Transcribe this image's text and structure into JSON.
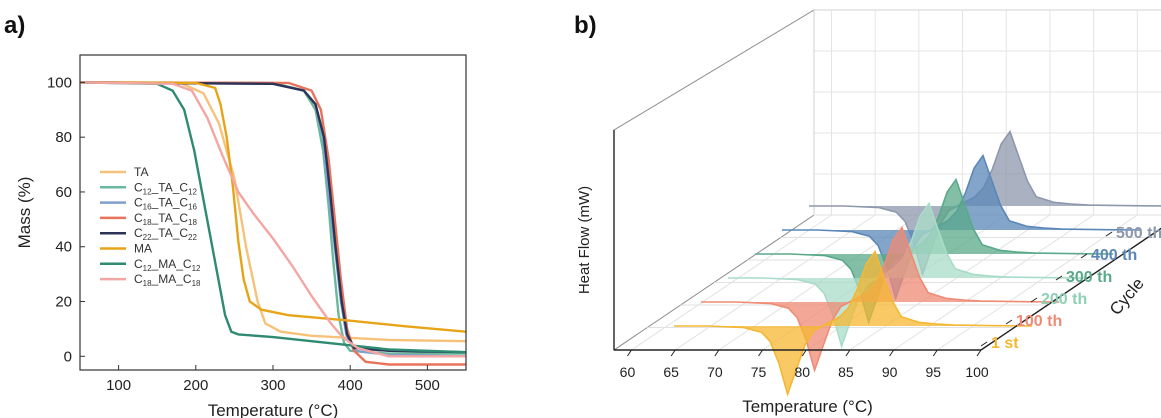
{
  "panel_a": {
    "label": "a)"
  },
  "panel_b": {
    "label": "b)"
  },
  "chart_data": [
    {
      "type": "line",
      "xlabel": "Temperature (°C)",
      "ylabel": "Mass (%)",
      "xlim": [
        50,
        550
      ],
      "ylim": [
        -5,
        110
      ],
      "xticks": [
        100,
        200,
        300,
        400,
        500
      ],
      "yticks": [
        0,
        20,
        40,
        60,
        80,
        100
      ],
      "legend_position": "bottom-left",
      "series": [
        {
          "name": "TA",
          "sub": [
            "",
            ""
          ],
          "color": "#f6c27a",
          "points": [
            [
              50,
              100
            ],
            [
              180,
              99.8
            ],
            [
              210,
              96
            ],
            [
              230,
              85
            ],
            [
              250,
              65
            ],
            [
              265,
              40
            ],
            [
              280,
              20
            ],
            [
              290,
              12
            ],
            [
              310,
              9
            ],
            [
              350,
              7.5
            ],
            [
              450,
              6
            ],
            [
              550,
              5.5
            ]
          ]
        },
        {
          "name": "C",
          "sub": [
            "12",
            "_TA_C",
            "12"
          ],
          "color": "#6bb99d",
          "points": [
            [
              50,
              100
            ],
            [
              300,
              99.8
            ],
            [
              340,
              97
            ],
            [
              355,
              90
            ],
            [
              365,
              75
            ],
            [
              372,
              55
            ],
            [
              378,
              35
            ],
            [
              385,
              15
            ],
            [
              392,
              5
            ],
            [
              400,
              2
            ],
            [
              450,
              1
            ],
            [
              550,
              1
            ]
          ]
        },
        {
          "name": "C",
          "sub": [
            "16",
            "_TA_C",
            "16"
          ],
          "color": "#7f9fcf",
          "points": [
            [
              50,
              100
            ],
            [
              300,
              99.5
            ],
            [
              340,
              97
            ],
            [
              355,
              92
            ],
            [
              365,
              80
            ],
            [
              372,
              60
            ],
            [
              380,
              40
            ],
            [
              388,
              20
            ],
            [
              395,
              8
            ],
            [
              405,
              2
            ],
            [
              450,
              0.5
            ],
            [
              550,
              0
            ]
          ]
        },
        {
          "name": "C",
          "sub": [
            "18",
            "_TA_C",
            "18"
          ],
          "color": "#e8735a",
          "points": [
            [
              50,
              100
            ],
            [
              320,
              99.8
            ],
            [
              350,
              97
            ],
            [
              362,
              90
            ],
            [
              372,
              72
            ],
            [
              380,
              50
            ],
            [
              388,
              28
            ],
            [
              396,
              10
            ],
            [
              405,
              2
            ],
            [
              420,
              -2
            ],
            [
              450,
              -3
            ],
            [
              550,
              -3
            ]
          ]
        },
        {
          "name": "C",
          "sub": [
            "22",
            "_TA_C",
            "22"
          ],
          "color": "#2c3357",
          "points": [
            [
              50,
              100
            ],
            [
              300,
              99.5
            ],
            [
              340,
              97
            ],
            [
              355,
              92
            ],
            [
              366,
              80
            ],
            [
              374,
              60
            ],
            [
              381,
              40
            ],
            [
              389,
              20
            ],
            [
              396,
              8
            ],
            [
              405,
              3
            ],
            [
              450,
              2
            ],
            [
              550,
              1.5
            ]
          ]
        },
        {
          "name": "MA",
          "sub": [
            "",
            ""
          ],
          "color": "#e8a418",
          "points": [
            [
              50,
              100
            ],
            [
              200,
              99.8
            ],
            [
              225,
              98
            ],
            [
              232,
              92
            ],
            [
              240,
              80
            ],
            [
              248,
              62
            ],
            [
              255,
              42
            ],
            [
              262,
              28
            ],
            [
              270,
              20
            ],
            [
              285,
              17
            ],
            [
              320,
              15
            ],
            [
              400,
              13
            ],
            [
              470,
              11
            ],
            [
              550,
              9
            ]
          ]
        },
        {
          "name": "C",
          "sub": [
            "12",
            "_MA_C",
            "12"
          ],
          "color": "#2e8b72",
          "points": [
            [
              50,
              100
            ],
            [
              150,
              99.5
            ],
            [
              170,
              97
            ],
            [
              185,
              90
            ],
            [
              198,
              75
            ],
            [
              208,
              60
            ],
            [
              218,
              45
            ],
            [
              228,
              30
            ],
            [
              238,
              15
            ],
            [
              246,
              9
            ],
            [
              255,
              8
            ],
            [
              300,
              7
            ],
            [
              400,
              4
            ],
            [
              450,
              2.5
            ],
            [
              550,
              1.5
            ]
          ]
        },
        {
          "name": "C",
          "sub": [
            "18",
            "_MA_C",
            "18"
          ],
          "color": "#f4a6a3",
          "points": [
            [
              50,
              100
            ],
            [
              170,
              99.5
            ],
            [
              195,
              97
            ],
            [
              215,
              87
            ],
            [
              235,
              73
            ],
            [
              255,
              60
            ],
            [
              275,
              52
            ],
            [
              300,
              43
            ],
            [
              325,
              33
            ],
            [
              350,
              22
            ],
            [
              375,
              12
            ],
            [
              390,
              7
            ],
            [
              410,
              3
            ],
            [
              450,
              0
            ],
            [
              550,
              0
            ]
          ]
        }
      ]
    },
    {
      "type": "area",
      "xlabel": "Temperature (°C)",
      "ylabel": "Heat Flow (mW)",
      "zlabel": "Cycle",
      "xlim": [
        58,
        100
      ],
      "xticks": [
        60,
        65,
        70,
        75,
        80,
        85,
        90,
        95,
        100
      ],
      "categories": [
        "1 st",
        "100 th",
        "200 th",
        "300 th",
        "400 th",
        "500 th"
      ],
      "series": [
        {
          "name": "1 st",
          "color": "#f5b731"
        },
        {
          "name": "100 th",
          "color": "#ef8b74"
        },
        {
          "name": "200 th",
          "color": "#a9dcc8"
        },
        {
          "name": "300 th",
          "color": "#5aa98a"
        },
        {
          "name": "400 th",
          "color": "#5b87b8"
        },
        {
          "name": "500 th",
          "color": "#8e98ad"
        }
      ],
      "curve": {
        "x": [
          58,
          62,
          66,
          68,
          69,
          70,
          71,
          72,
          73,
          74,
          75,
          76,
          77,
          78,
          79,
          80,
          81,
          82,
          83,
          84,
          86,
          88,
          90,
          95,
          99
        ],
        "y": [
          0,
          0,
          -0.5,
          -2,
          -5,
          -12,
          -22,
          -14,
          -6,
          -1.5,
          0,
          1.5,
          3,
          6,
          12,
          20,
          24,
          16,
          8,
          3,
          1.2,
          0.6,
          0.3,
          0.1,
          0
        ]
      }
    }
  ]
}
